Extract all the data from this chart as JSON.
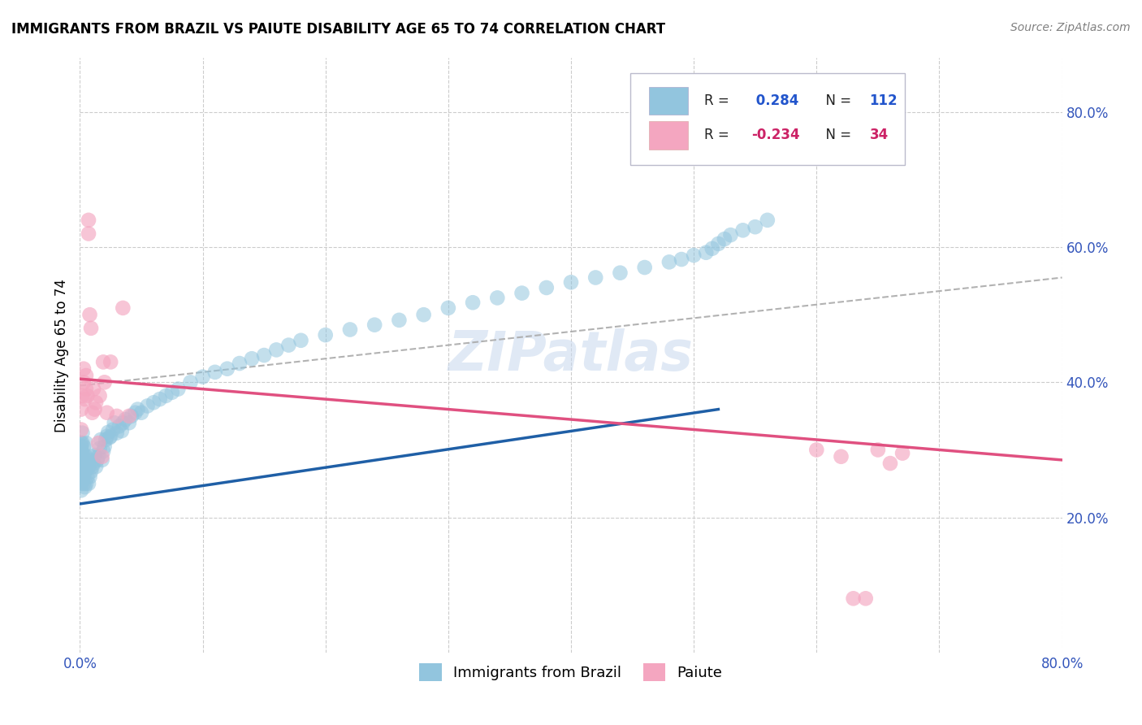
{
  "title": "IMMIGRANTS FROM BRAZIL VS PAIUTE DISABILITY AGE 65 TO 74 CORRELATION CHART",
  "source": "Source: ZipAtlas.com",
  "ylabel": "Disability Age 65 to 74",
  "xlim": [
    0.0,
    0.8
  ],
  "ylim": [
    0.0,
    0.88
  ],
  "xtick_vals": [
    0.0,
    0.1,
    0.2,
    0.3,
    0.4,
    0.5,
    0.6,
    0.7,
    0.8
  ],
  "xticklabels": [
    "0.0%",
    "",
    "",
    "",
    "",
    "",
    "",
    "",
    "80.0%"
  ],
  "ytick_positions": [
    0.2,
    0.4,
    0.6,
    0.8
  ],
  "ytick_labels": [
    "20.0%",
    "40.0%",
    "60.0%",
    "80.0%"
  ],
  "legend_text1": "R =  0.284   N = 112",
  "legend_text2": "R = -0.234   N = 34",
  "legend_label1": "Immigrants from Brazil",
  "legend_label2": "Paiute",
  "blue_color": "#92c5de",
  "pink_color": "#f4a6c0",
  "blue_line_color": "#1f5fa6",
  "pink_line_color": "#e05080",
  "gray_line_color": "#aaaaaa",
  "watermark": "ZIPatlas",
  "blue_line_x0": 0.0,
  "blue_line_y0": 0.22,
  "blue_line_x1": 0.52,
  "blue_line_y1": 0.36,
  "pink_line_x0": 0.0,
  "pink_line_y0": 0.405,
  "pink_line_x1": 0.8,
  "pink_line_y1": 0.285,
  "gray_line_x0": 0.0,
  "gray_line_y0": 0.395,
  "gray_line_x1": 0.8,
  "gray_line_y1": 0.555,
  "brazil_x": [
    0.0005,
    0.001,
    0.001,
    0.001,
    0.001,
    0.001,
    0.001,
    0.001,
    0.001,
    0.001,
    0.001,
    0.001,
    0.001,
    0.001,
    0.001,
    0.0015,
    0.0015,
    0.0015,
    0.002,
    0.002,
    0.002,
    0.002,
    0.002,
    0.002,
    0.003,
    0.003,
    0.003,
    0.003,
    0.004,
    0.004,
    0.004,
    0.005,
    0.005,
    0.005,
    0.005,
    0.006,
    0.006,
    0.007,
    0.007,
    0.008,
    0.008,
    0.009,
    0.009,
    0.01,
    0.011,
    0.012,
    0.013,
    0.014,
    0.015,
    0.016,
    0.017,
    0.018,
    0.019,
    0.02,
    0.021,
    0.022,
    0.023,
    0.024,
    0.025,
    0.027,
    0.028,
    0.03,
    0.032,
    0.034,
    0.035,
    0.037,
    0.04,
    0.042,
    0.045,
    0.047,
    0.05,
    0.055,
    0.06,
    0.065,
    0.07,
    0.075,
    0.08,
    0.09,
    0.1,
    0.11,
    0.12,
    0.13,
    0.14,
    0.15,
    0.16,
    0.17,
    0.18,
    0.2,
    0.22,
    0.24,
    0.26,
    0.28,
    0.3,
    0.32,
    0.34,
    0.36,
    0.38,
    0.4,
    0.42,
    0.44,
    0.46,
    0.48,
    0.49,
    0.5,
    0.51,
    0.515,
    0.52,
    0.525,
    0.53,
    0.54,
    0.55,
    0.56
  ],
  "brazil_y": [
    0.255,
    0.27,
    0.28,
    0.265,
    0.25,
    0.29,
    0.3,
    0.31,
    0.255,
    0.265,
    0.275,
    0.285,
    0.295,
    0.305,
    0.24,
    0.26,
    0.275,
    0.29,
    0.255,
    0.27,
    0.28,
    0.295,
    0.31,
    0.325,
    0.25,
    0.268,
    0.28,
    0.305,
    0.245,
    0.265,
    0.285,
    0.25,
    0.27,
    0.29,
    0.31,
    0.26,
    0.28,
    0.25,
    0.275,
    0.26,
    0.285,
    0.268,
    0.29,
    0.275,
    0.28,
    0.292,
    0.275,
    0.285,
    0.29,
    0.302,
    0.315,
    0.285,
    0.298,
    0.305,
    0.315,
    0.32,
    0.326,
    0.318,
    0.32,
    0.33,
    0.34,
    0.325,
    0.335,
    0.328,
    0.34,
    0.345,
    0.34,
    0.35,
    0.355,
    0.36,
    0.355,
    0.365,
    0.37,
    0.375,
    0.38,
    0.385,
    0.39,
    0.4,
    0.408,
    0.415,
    0.42,
    0.428,
    0.435,
    0.44,
    0.448,
    0.455,
    0.462,
    0.47,
    0.478,
    0.485,
    0.492,
    0.5,
    0.51,
    0.518,
    0.525,
    0.532,
    0.54,
    0.548,
    0.555,
    0.562,
    0.57,
    0.578,
    0.582,
    0.588,
    0.592,
    0.598,
    0.605,
    0.612,
    0.618,
    0.625,
    0.63,
    0.64
  ],
  "paiute_x": [
    0.001,
    0.001,
    0.002,
    0.003,
    0.003,
    0.004,
    0.005,
    0.005,
    0.006,
    0.007,
    0.007,
    0.008,
    0.009,
    0.01,
    0.011,
    0.012,
    0.013,
    0.015,
    0.016,
    0.018,
    0.019,
    0.02,
    0.022,
    0.025,
    0.03,
    0.035,
    0.04,
    0.6,
    0.62,
    0.63,
    0.64,
    0.65,
    0.66,
    0.67
  ],
  "paiute_y": [
    0.33,
    0.36,
    0.38,
    0.4,
    0.42,
    0.375,
    0.39,
    0.41,
    0.38,
    0.62,
    0.64,
    0.5,
    0.48,
    0.355,
    0.39,
    0.36,
    0.37,
    0.31,
    0.38,
    0.29,
    0.43,
    0.4,
    0.355,
    0.43,
    0.35,
    0.51,
    0.35,
    0.3,
    0.29,
    0.08,
    0.08,
    0.3,
    0.28,
    0.295
  ]
}
